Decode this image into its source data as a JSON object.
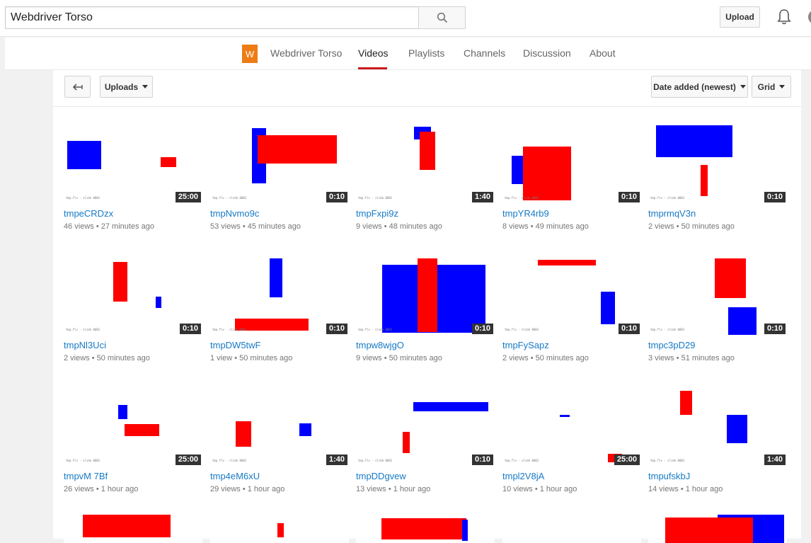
{
  "header": {
    "search_value": "Webdriver Torso",
    "upload_label": "Upload"
  },
  "channel_nav": {
    "name": "Webdriver Torso",
    "logo_letter": "W",
    "tabs": [
      "Videos",
      "Playlists",
      "Channels",
      "Discussion",
      "About"
    ],
    "active_tab": "Videos"
  },
  "toolbar": {
    "uploads_label": "Uploads",
    "sort_label": "Date added (newest)",
    "view_label": "Grid"
  },
  "thumb_caption": "tmp.flv - slide 0001",
  "videos": [
    {
      "title": "tmpeCRDzx",
      "views": "46 views",
      "age": "27 minutes ago",
      "duration": "25:00"
    },
    {
      "title": "tmpNvmo9c",
      "views": "53 views",
      "age": "45 minutes ago",
      "duration": "0:10"
    },
    {
      "title": "tmpFxpi9z",
      "views": "9 views",
      "age": "48 minutes ago",
      "duration": "1:40"
    },
    {
      "title": "tmpYR4rb9",
      "views": "8 views",
      "age": "49 minutes ago",
      "duration": "0:10"
    },
    {
      "title": "tmprmqV3n",
      "views": "2 views",
      "age": "50 minutes ago",
      "duration": "0:10"
    },
    {
      "title": "tmpNl3Uci",
      "views": "2 views",
      "age": "50 minutes ago",
      "duration": "0:10"
    },
    {
      "title": "tmpDW5twF",
      "views": "1 view",
      "age": "50 minutes ago",
      "duration": "0:10"
    },
    {
      "title": "tmpw8wjgO",
      "views": "9 views",
      "age": "50 minutes ago",
      "duration": "0:10"
    },
    {
      "title": "tmpFySapz",
      "views": "2 views",
      "age": "50 minutes ago",
      "duration": "0:10"
    },
    {
      "title": "tmpc3pD29",
      "views": "3 views",
      "age": "51 minutes ago",
      "duration": "0:10"
    },
    {
      "title": "tmpvM 7Bf",
      "views": "26 views",
      "age": "1 hour ago",
      "duration": "25:00"
    },
    {
      "title": "tmp4eM6xU",
      "views": "29 views",
      "age": "1 hour ago",
      "duration": "1:40"
    },
    {
      "title": "tmpDDgvew",
      "views": "13 views",
      "age": "1 hour ago",
      "duration": "0:10"
    },
    {
      "title": "tmpl2V8jA",
      "views": "10 views",
      "age": "1 hour ago",
      "duration": "25:00"
    },
    {
      "title": "tmpufskbJ",
      "views": "14 views",
      "age": "1 hour ago",
      "duration": "1:40"
    }
  ],
  "colors": {
    "red": "#ff0000",
    "blue": "#0000ff",
    "link": "#167ac6",
    "logo": "#ee7b16"
  }
}
